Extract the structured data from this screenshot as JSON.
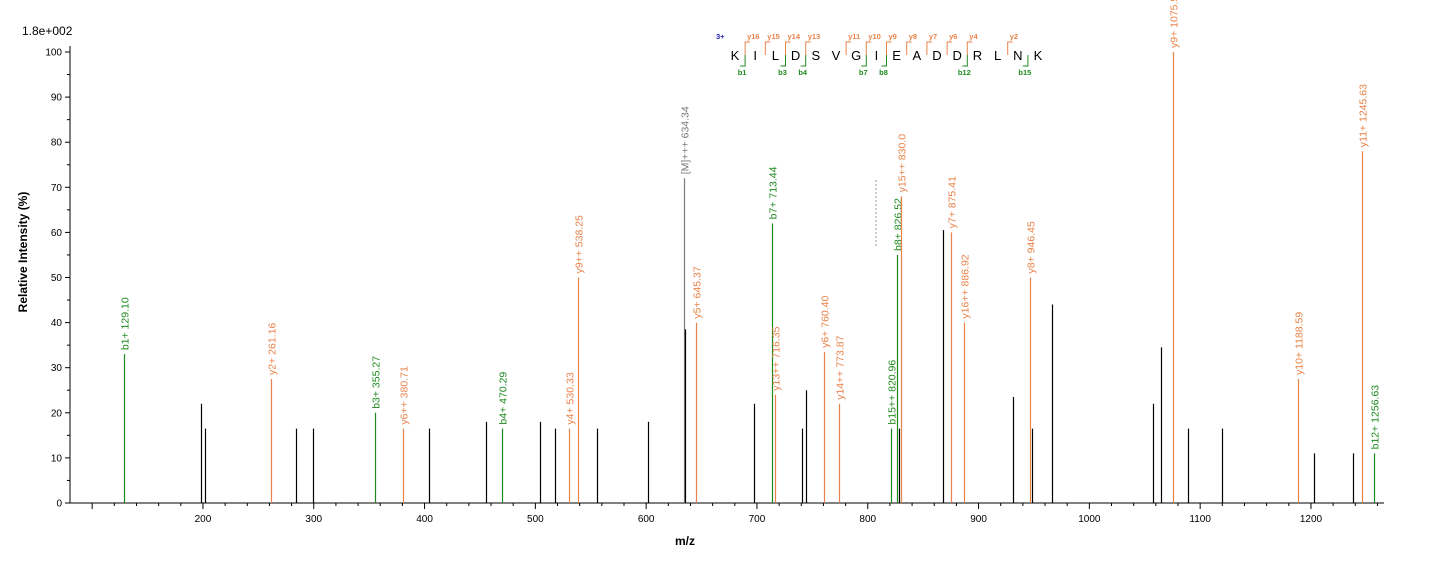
{
  "chart_data": {
    "type": "bar",
    "scale_label": "1.8e+002",
    "xlabel": "m/z",
    "ylabel": "Relative   Intensity (%)",
    "xlim": [
      80,
      1290
    ],
    "ylim": [
      0,
      100
    ],
    "x_ticks": [
      200,
      300,
      400,
      500,
      600,
      700,
      800,
      900,
      1000,
      1100,
      1200
    ],
    "y_ticks": [
      0,
      10,
      20,
      30,
      40,
      50,
      60,
      70,
      80,
      90,
      100
    ],
    "colors": {
      "b": "#1e8a1e",
      "y": "#e8834a",
      "precursor": "#7a7a7a",
      "unassigned": "#000000",
      "charge": "#1a1aa8"
    },
    "peaks": [
      {
        "mz": 129.1,
        "intensity": 33,
        "type": "b",
        "label": "b1+ 129.10"
      },
      {
        "mz": 198.5,
        "intensity": 22,
        "type": "u",
        "label": ""
      },
      {
        "mz": 201.5,
        "intensity": 16.5,
        "type": "u",
        "label": ""
      },
      {
        "mz": 261.16,
        "intensity": 27.5,
        "type": "y",
        "label": "y2+ 261.16"
      },
      {
        "mz": 284,
        "intensity": 16.5,
        "type": "u",
        "label": ""
      },
      {
        "mz": 299,
        "intensity": 16.5,
        "type": "u",
        "label": ""
      },
      {
        "mz": 355.27,
        "intensity": 20,
        "type": "b",
        "label": "b3+ 355.27"
      },
      {
        "mz": 380.71,
        "intensity": 16.5,
        "type": "y",
        "label": "y6++ 380.71"
      },
      {
        "mz": 404,
        "intensity": 16.5,
        "type": "u",
        "label": ""
      },
      {
        "mz": 455,
        "intensity": 18,
        "type": "u",
        "label": ""
      },
      {
        "mz": 470.29,
        "intensity": 16.5,
        "type": "b",
        "label": "b4+ 470.29"
      },
      {
        "mz": 504,
        "intensity": 18,
        "type": "u",
        "label": ""
      },
      {
        "mz": 518,
        "intensity": 16.5,
        "type": "u",
        "label": ""
      },
      {
        "mz": 530.33,
        "intensity": 16.5,
        "type": "y",
        "label": "y4+ 530.33"
      },
      {
        "mz": 538.25,
        "intensity": 50,
        "type": "y",
        "label": "y9++ 538.25"
      },
      {
        "mz": 556,
        "intensity": 16.5,
        "type": "u",
        "label": ""
      },
      {
        "mz": 602,
        "intensity": 18,
        "type": "u",
        "label": ""
      },
      {
        "mz": 634.34,
        "intensity": 72,
        "type": "p",
        "label": "[M]+++ 634.34"
      },
      {
        "mz": 635.5,
        "intensity": 38.5,
        "type": "u",
        "label": ""
      },
      {
        "mz": 645.37,
        "intensity": 40,
        "type": "y",
        "label": "y5+ 645.37"
      },
      {
        "mz": 697,
        "intensity": 22,
        "type": "u",
        "label": ""
      },
      {
        "mz": 713.44,
        "intensity": 62,
        "type": "b",
        "label": "b7+ 713.44"
      },
      {
        "mz": 716.35,
        "intensity": 24,
        "type": "y",
        "label": "y13++ 716.35"
      },
      {
        "mz": 741,
        "intensity": 16.5,
        "type": "u",
        "label": ""
      },
      {
        "mz": 744,
        "intensity": 25,
        "type": "u",
        "label": ""
      },
      {
        "mz": 760.4,
        "intensity": 33.5,
        "type": "y",
        "label": "y6+ 760.40"
      },
      {
        "mz": 773.87,
        "intensity": 22,
        "type": "y",
        "label": "y14++ 773.87"
      },
      {
        "mz": 820.96,
        "intensity": 16.5,
        "type": "b",
        "label": "b15++ 820.96"
      },
      {
        "mz": 826.52,
        "intensity": 55,
        "type": "b",
        "label": "b8+ 826.52"
      },
      {
        "mz": 828,
        "intensity": 16.5,
        "type": "u",
        "label": ""
      },
      {
        "mz": 830.0,
        "intensity": 68,
        "type": "y",
        "label": "y15++ 830.0"
      },
      {
        "mz": 868,
        "intensity": 60.5,
        "type": "u",
        "label": ""
      },
      {
        "mz": 875.41,
        "intensity": 60,
        "type": "y",
        "label": "y7+ 875.41"
      },
      {
        "mz": 886.92,
        "intensity": 40,
        "type": "y",
        "label": "y16++ 886.92"
      },
      {
        "mz": 931,
        "intensity": 23.5,
        "type": "u",
        "label": ""
      },
      {
        "mz": 946.45,
        "intensity": 50,
        "type": "y",
        "label": "y8+ 946.45"
      },
      {
        "mz": 948,
        "intensity": 16.5,
        "type": "u",
        "label": ""
      },
      {
        "mz": 966,
        "intensity": 44,
        "type": "u",
        "label": ""
      },
      {
        "mz": 1057,
        "intensity": 22,
        "type": "u",
        "label": ""
      },
      {
        "mz": 1065,
        "intensity": 34.5,
        "type": "u",
        "label": ""
      },
      {
        "mz": 1075.52,
        "intensity": 100,
        "type": "y",
        "label": "y9+ 1075.52"
      },
      {
        "mz": 1089,
        "intensity": 16.5,
        "type": "u",
        "label": ""
      },
      {
        "mz": 1120,
        "intensity": 16.5,
        "type": "u",
        "label": ""
      },
      {
        "mz": 1188.59,
        "intensity": 27.5,
        "type": "y",
        "label": "y10+ 1188.59"
      },
      {
        "mz": 1203,
        "intensity": 11,
        "type": "u",
        "label": ""
      },
      {
        "mz": 1238,
        "intensity": 11,
        "type": "u",
        "label": ""
      },
      {
        "mz": 1245.63,
        "intensity": 78,
        "type": "y",
        "label": "y11+ 1245.63"
      },
      {
        "mz": 1256.63,
        "intensity": 11,
        "type": "b",
        "label": "b12+ 1256.63"
      }
    ],
    "sequence": {
      "charge": "3+",
      "residues": [
        "K",
        "I",
        "L",
        "D",
        "S",
        "V",
        "G",
        "I",
        "E",
        "A",
        "D",
        "D",
        "R",
        "L",
        "N",
        "K"
      ],
      "y_ions": [
        {
          "after": 1,
          "label": "y16"
        },
        {
          "after": 2,
          "label": "y15"
        },
        {
          "after": 3,
          "label": "y14"
        },
        {
          "after": 4,
          "label": "y13"
        },
        {
          "after": 6,
          "label": "y11"
        },
        {
          "after": 7,
          "label": "y10"
        },
        {
          "after": 8,
          "label": "y9"
        },
        {
          "after": 9,
          "label": "y8"
        },
        {
          "after": 10,
          "label": "y7"
        },
        {
          "after": 11,
          "label": "y6"
        },
        {
          "after": 12,
          "label": "y4"
        },
        {
          "after": 14,
          "label": "y2"
        }
      ],
      "b_ions": [
        {
          "after": 1,
          "label": "b1"
        },
        {
          "after": 3,
          "label": "b3"
        },
        {
          "after": 4,
          "label": "b4"
        },
        {
          "after": 7,
          "label": "b7"
        },
        {
          "after": 8,
          "label": "b8"
        },
        {
          "after": 12,
          "label": "b12"
        },
        {
          "after": 15,
          "label": "b15"
        }
      ]
    }
  }
}
